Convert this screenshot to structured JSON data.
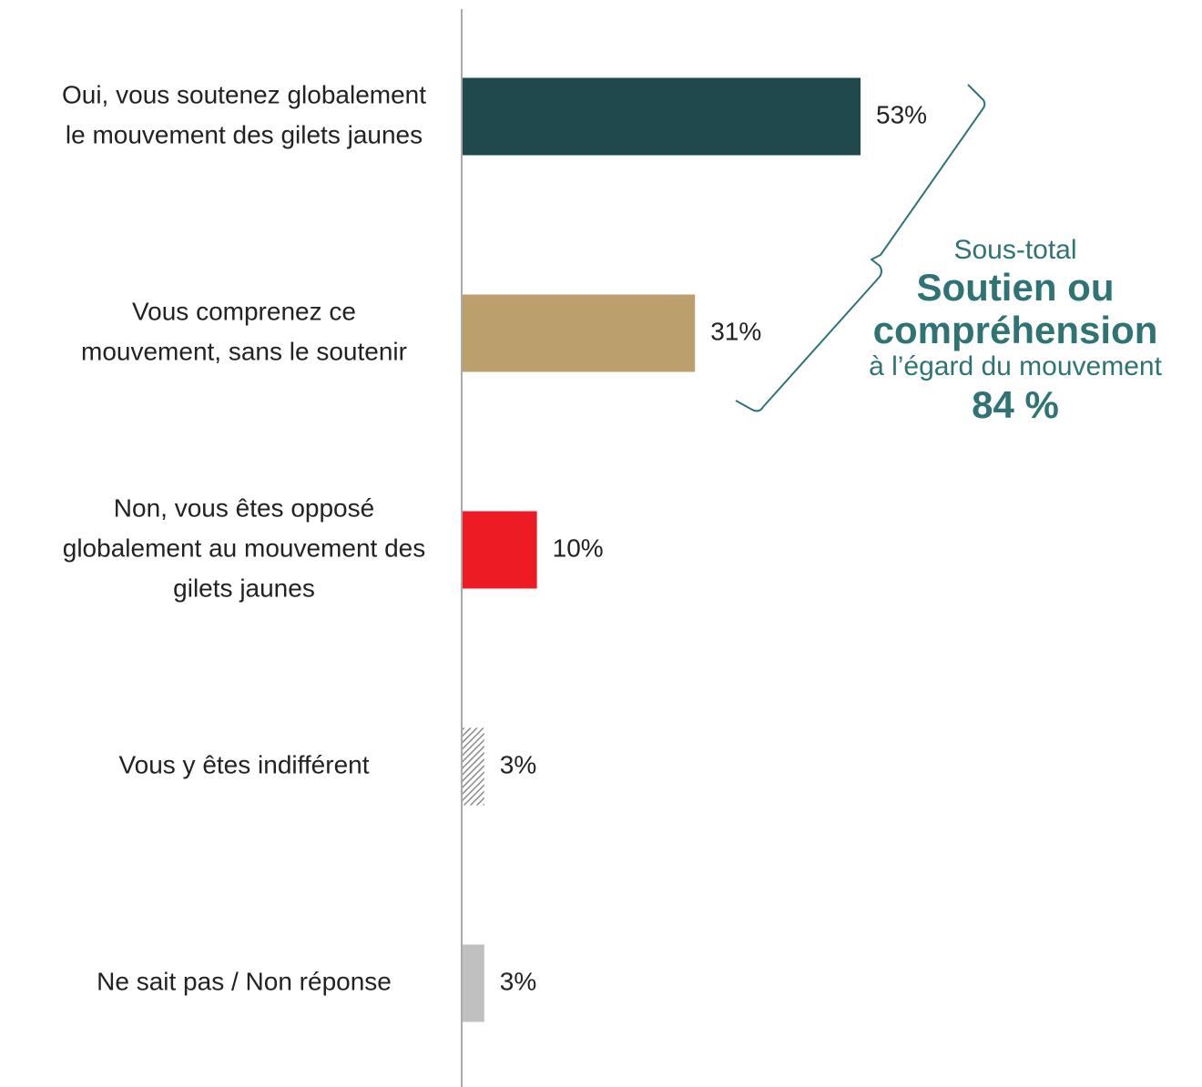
{
  "chart_data": {
    "type": "bar",
    "orientation": "horizontal",
    "categories": [
      [
        "Oui, vous soutenez globalement",
        "le mouvement des gilets jaunes"
      ],
      [
        "Vous comprenez ce",
        "mouvement, sans le soutenir"
      ],
      [
        "Non, vous êtes opposé",
        "globalement au mouvement des",
        "gilets jaunes"
      ],
      [
        "Vous y êtes indifférent"
      ],
      [
        "Ne sait pas / Non réponse"
      ]
    ],
    "values": [
      53,
      31,
      10,
      3,
      3
    ],
    "value_labels": [
      "53%",
      "31%",
      "10%",
      "3%",
      "3%"
    ],
    "colors": [
      "#20494d",
      "#bb9f6d",
      "#ed1c24",
      "hatched-grey",
      "#c0c0c0"
    ],
    "xlim": [
      0,
      100
    ],
    "grid": false,
    "annotation": {
      "bracket_spans": [
        0,
        1
      ],
      "subtitle": "Sous-total",
      "title_lines": [
        "Soutien ou",
        "compréhension"
      ],
      "description": "à l’égard du mouvement",
      "total": "84 %",
      "color": "#2f7375"
    }
  }
}
